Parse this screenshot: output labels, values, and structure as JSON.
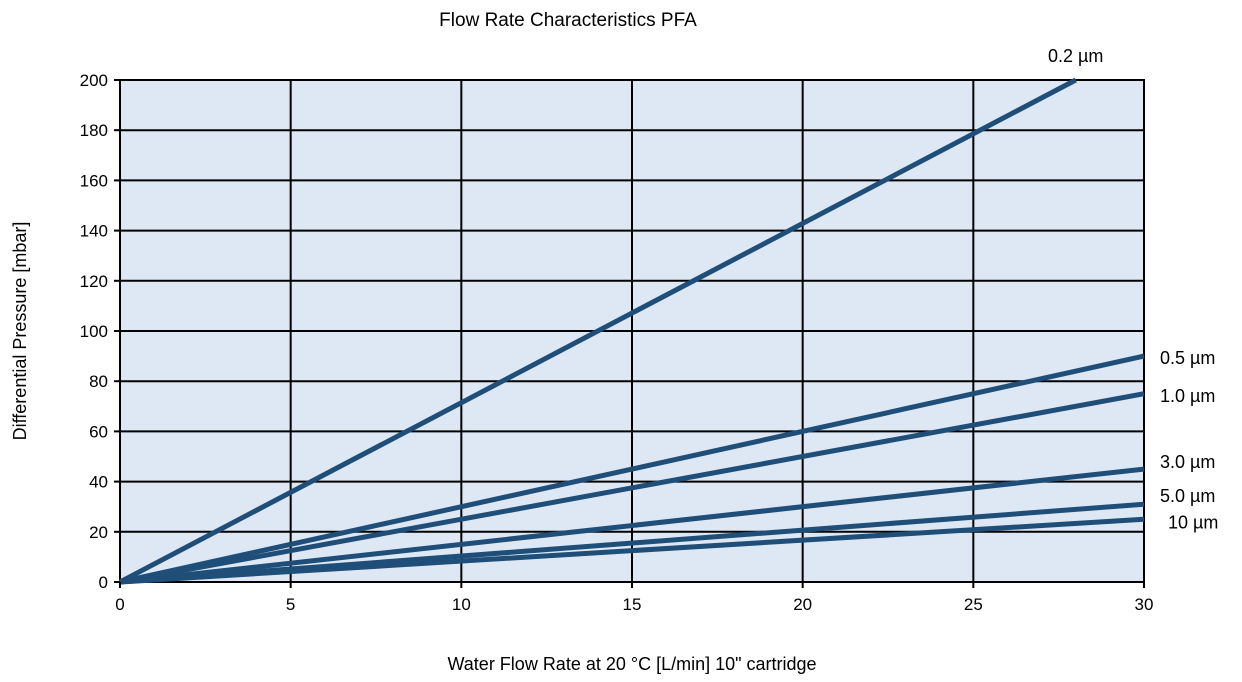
{
  "chart_data": {
    "type": "line",
    "title": "Flow Rate Characteristics PFA",
    "xlabel": "Water Flow Rate at 20 °C [L/min] 10\" cartridge",
    "ylabel": "Differential Pressure [mbar]",
    "xlim": [
      0,
      30
    ],
    "ylim": [
      0,
      200
    ],
    "x_ticks": [
      0,
      5,
      10,
      15,
      20,
      25,
      30
    ],
    "y_ticks": [
      0,
      20,
      40,
      60,
      80,
      100,
      120,
      140,
      160,
      180,
      200
    ],
    "x_tick_labels": [
      "0",
      "5",
      "10",
      "15",
      "20",
      "25",
      "30"
    ],
    "y_tick_labels": [
      "0",
      "20",
      "40",
      "60",
      "80",
      "100",
      "120",
      "140",
      "160",
      "180",
      "200"
    ],
    "grid": true,
    "legend": "labels at line ends (right)",
    "colors": {
      "line": "#1f4e79",
      "plot_bg": "#dde8f4",
      "grid": "#000000"
    },
    "series": [
      {
        "name": "0.2 µm",
        "points": [
          [
            0,
            0
          ],
          [
            28,
            200
          ]
        ]
      },
      {
        "name": "0.5 µm",
        "points": [
          [
            0,
            0
          ],
          [
            30,
            90
          ]
        ]
      },
      {
        "name": "1.0 µm",
        "points": [
          [
            0,
            0
          ],
          [
            30,
            75
          ]
        ]
      },
      {
        "name": "3.0 µm",
        "points": [
          [
            0,
            0
          ],
          [
            30,
            45
          ]
        ]
      },
      {
        "name": "5.0 µm",
        "points": [
          [
            0,
            0
          ],
          [
            30,
            31
          ]
        ]
      },
      {
        "name": "10  µm",
        "points": [
          [
            0,
            0
          ],
          [
            30,
            25
          ]
        ]
      }
    ]
  }
}
